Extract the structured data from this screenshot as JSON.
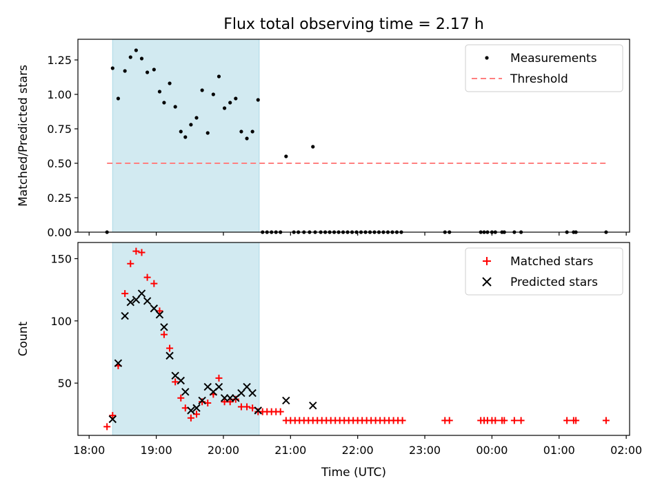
{
  "chart_data": {
    "title": "Flux total observing time = 2.17 h",
    "x_axis": {
      "label": "Time (UTC)",
      "ticks": [
        "18:00",
        "19:00",
        "20:00",
        "21:00",
        "22:00",
        "23:00",
        "00:00",
        "01:00",
        "02:00"
      ],
      "range": [
        "18:00",
        "02:00"
      ]
    },
    "observing_window": {
      "start": "18:21",
      "end": "20:32",
      "color": "#add8e6"
    },
    "panels": [
      {
        "type": "scatter",
        "ylabel": "Matched/Predicted stars",
        "ylim": [
          0,
          1.4
        ],
        "yticks": [
          "0.00",
          "0.25",
          "0.50",
          "0.75",
          "1.00",
          "1.25"
        ],
        "legend": {
          "placement": "top-right",
          "entries": [
            "Measurements",
            "Threshold"
          ]
        },
        "series": [
          {
            "name": "Measurements",
            "marker": "dot",
            "color": "#000000",
            "points": [
              [
                "18:16",
                0
              ],
              [
                "18:21",
                1.19
              ],
              [
                "18:26",
                0.97
              ],
              [
                "18:32",
                1.17
              ],
              [
                "18:37",
                1.27
              ],
              [
                "18:42",
                1.32
              ],
              [
                "18:47",
                1.26
              ],
              [
                "18:52",
                1.16
              ],
              [
                "18:58",
                1.18
              ],
              [
                "19:03",
                1.02
              ],
              [
                "19:07",
                0.94
              ],
              [
                "19:12",
                1.08
              ],
              [
                "19:17",
                0.91
              ],
              [
                "19:22",
                0.73
              ],
              [
                "19:26",
                0.69
              ],
              [
                "19:31",
                0.78
              ],
              [
                "19:36",
                0.83
              ],
              [
                "19:41",
                1.03
              ],
              [
                "19:46",
                0.72
              ],
              [
                "19:51",
                1.0
              ],
              [
                "19:56",
                1.13
              ],
              [
                "20:01",
                0.9
              ],
              [
                "20:06",
                0.94
              ],
              [
                "20:11",
                0.97
              ],
              [
                "20:16",
                0.73
              ],
              [
                "20:21",
                0.68
              ],
              [
                "20:26",
                0.73
              ],
              [
                "20:31",
                0.96
              ],
              [
                "20:35",
                0
              ],
              [
                "20:39",
                0
              ],
              [
                "20:43",
                0
              ],
              [
                "20:47",
                0
              ],
              [
                "20:51",
                0
              ],
              [
                "20:56",
                0.55
              ],
              [
                "21:03",
                0
              ],
              [
                "21:07",
                0
              ],
              [
                "21:12",
                0
              ],
              [
                "21:17",
                0
              ],
              [
                "21:22",
                0
              ],
              [
                "21:27",
                0
              ],
              [
                "21:31",
                0
              ],
              [
                "21:35",
                0
              ],
              [
                "21:39",
                0
              ],
              [
                "21:43",
                0
              ],
              [
                "21:47",
                0
              ],
              [
                "21:51",
                0
              ],
              [
                "21:55",
                0
              ],
              [
                "21:59",
                0
              ],
              [
                "22:03",
                0
              ],
              [
                "22:07",
                0
              ],
              [
                "22:11",
                0
              ],
              [
                "22:15",
                0
              ],
              [
                "22:19",
                0
              ],
              [
                "22:23",
                0
              ],
              [
                "22:27",
                0
              ],
              [
                "22:31",
                0
              ],
              [
                "22:35",
                0
              ],
              [
                "22:39",
                0
              ],
              [
                "23:18",
                0
              ],
              [
                "23:22",
                0
              ],
              [
                "23:50",
                0
              ],
              [
                "23:53",
                0
              ],
              [
                "23:56",
                0
              ],
              [
                "00:00",
                0
              ],
              [
                "00:03",
                0
              ],
              [
                "00:09",
                0
              ],
              [
                "00:11",
                0
              ],
              [
                "00:20",
                0
              ],
              [
                "00:26",
                0
              ],
              [
                "01:07",
                0
              ],
              [
                "01:13",
                0
              ],
              [
                "01:15",
                0
              ],
              [
                "01:42",
                0
              ],
              [
                "21:20",
                0.62
              ]
            ]
          },
          {
            "name": "Threshold",
            "line": "dashed",
            "color": "#ff7f7f",
            "points": [
              [
                "18:16",
                0.5
              ],
              [
                "01:42",
                0.5
              ]
            ]
          }
        ]
      },
      {
        "type": "scatter",
        "ylabel": "Count",
        "ylim": [
          8,
          163
        ],
        "yticks": [
          "50",
          "100",
          "150"
        ],
        "legend": {
          "placement": "top-right",
          "entries": [
            "Matched stars",
            "Predicted stars"
          ]
        },
        "series": [
          {
            "name": "Matched stars",
            "marker": "plus",
            "color": "#ff0000",
            "points": [
              [
                "18:16",
                15
              ],
              [
                "18:21",
                24
              ],
              [
                "18:26",
                64
              ],
              [
                "18:32",
                122
              ],
              [
                "18:37",
                146
              ],
              [
                "18:42",
                156
              ],
              [
                "18:47",
                155
              ],
              [
                "18:52",
                135
              ],
              [
                "18:58",
                130
              ],
              [
                "19:03",
                108
              ],
              [
                "19:07",
                89
              ],
              [
                "19:12",
                78
              ],
              [
                "19:17",
                51
              ],
              [
                "19:22",
                38
              ],
              [
                "19:26",
                30
              ],
              [
                "19:31",
                22
              ],
              [
                "19:36",
                25
              ],
              [
                "19:41",
                35
              ],
              [
                "19:46",
                34
              ],
              [
                "19:51",
                41
              ],
              [
                "19:56",
                54
              ],
              [
                "20:01",
                35
              ],
              [
                "20:06",
                35
              ],
              [
                "20:11",
                37
              ],
              [
                "20:16",
                31
              ],
              [
                "20:21",
                31
              ],
              [
                "20:26",
                30
              ],
              [
                "20:31",
                27
              ],
              [
                "20:35",
                27
              ],
              [
                "20:39",
                27
              ],
              [
                "20:43",
                27
              ],
              [
                "20:47",
                27
              ],
              [
                "20:51",
                27
              ],
              [
                "20:56",
                20
              ],
              [
                "21:00",
                20
              ],
              [
                "21:04",
                20
              ],
              [
                "21:08",
                20
              ],
              [
                "21:12",
                20
              ],
              [
                "21:16",
                20
              ],
              [
                "21:20",
                20
              ],
              [
                "21:24",
                20
              ],
              [
                "21:28",
                20
              ],
              [
                "21:32",
                20
              ],
              [
                "21:36",
                20
              ],
              [
                "21:40",
                20
              ],
              [
                "21:44",
                20
              ],
              [
                "21:48",
                20
              ],
              [
                "21:52",
                20
              ],
              [
                "21:56",
                20
              ],
              [
                "22:00",
                20
              ],
              [
                "22:04",
                20
              ],
              [
                "22:08",
                20
              ],
              [
                "22:12",
                20
              ],
              [
                "22:16",
                20
              ],
              [
                "22:20",
                20
              ],
              [
                "22:24",
                20
              ],
              [
                "22:28",
                20
              ],
              [
                "22:32",
                20
              ],
              [
                "22:36",
                20
              ],
              [
                "22:40",
                20
              ],
              [
                "23:18",
                20
              ],
              [
                "23:22",
                20
              ],
              [
                "23:50",
                20
              ],
              [
                "23:53",
                20
              ],
              [
                "23:56",
                20
              ],
              [
                "00:00",
                20
              ],
              [
                "00:03",
                20
              ],
              [
                "00:09",
                20
              ],
              [
                "00:11",
                20
              ],
              [
                "00:20",
                20
              ],
              [
                "00:26",
                20
              ],
              [
                "01:07",
                20
              ],
              [
                "01:13",
                20
              ],
              [
                "01:15",
                20
              ],
              [
                "01:42",
                20
              ]
            ]
          },
          {
            "name": "Predicted stars",
            "marker": "x",
            "color": "#000000",
            "points": [
              [
                "18:21",
                21
              ],
              [
                "18:26",
                66
              ],
              [
                "18:32",
                104
              ],
              [
                "18:37",
                115
              ],
              [
                "18:42",
                117
              ],
              [
                "18:47",
                122
              ],
              [
                "18:52",
                116
              ],
              [
                "18:58",
                110
              ],
              [
                "19:03",
                105
              ],
              [
                "19:07",
                95
              ],
              [
                "19:12",
                72
              ],
              [
                "19:17",
                56
              ],
              [
                "19:22",
                52
              ],
              [
                "19:26",
                43
              ],
              [
                "19:31",
                28
              ],
              [
                "19:36",
                30
              ],
              [
                "19:41",
                36
              ],
              [
                "19:46",
                47
              ],
              [
                "19:51",
                43
              ],
              [
                "19:56",
                47
              ],
              [
                "20:01",
                38
              ],
              [
                "20:06",
                38
              ],
              [
                "20:11",
                38
              ],
              [
                "20:16",
                42
              ],
              [
                "20:21",
                47
              ],
              [
                "20:26",
                42
              ],
              [
                "20:31",
                28
              ],
              [
                "20:56",
                36
              ],
              [
                "21:20",
                32
              ]
            ]
          }
        ]
      }
    ]
  }
}
